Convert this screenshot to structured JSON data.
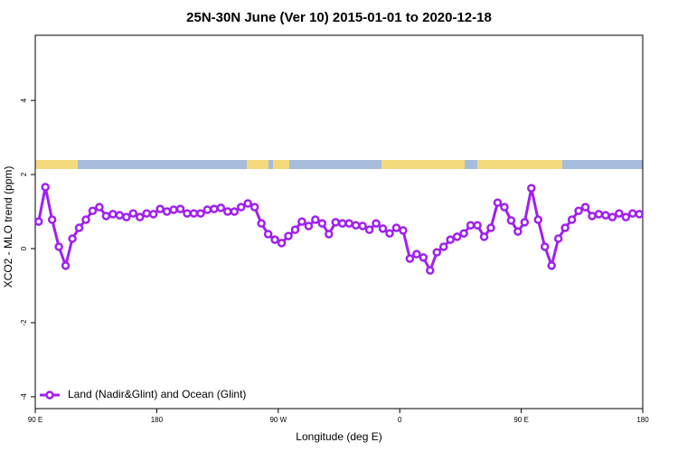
{
  "chart_data": {
    "type": "line",
    "title": "25N-30N June (Ver 10)   2015-01-01 to 2020-12-18",
    "x_label": "Longitude (deg E)",
    "y_label": "XCO2 - MLO trend (ppm)",
    "xlim": [
      90,
      540
    ],
    "ylim": [
      -4.32,
      5.76
    ],
    "xticks": [
      {
        "value": 90,
        "label": "90 E"
      },
      {
        "value": 180,
        "label": "180"
      },
      {
        "value": 270,
        "label": "90 W"
      },
      {
        "value": 360,
        "label": "0"
      },
      {
        "value": 450,
        "label": "90 E"
      },
      {
        "value": 540,
        "label": "180"
      }
    ],
    "yticks": [
      4,
      2,
      0,
      -2,
      -4
    ],
    "legend_position": "bottom-left",
    "x": [
      92.5,
      97.5,
      102.5,
      107.5,
      112.5,
      117.5,
      122.5,
      127.5,
      132.5,
      137.5,
      142.5,
      147.5,
      152.5,
      157.5,
      162.5,
      167.5,
      172.5,
      177.5,
      182.5,
      187.5,
      192.5,
      197.5,
      202.5,
      207.5,
      212.5,
      217.5,
      222.5,
      227.5,
      232.5,
      237.5,
      242.5,
      247.5,
      252.5,
      257.5,
      262.5,
      267.5,
      272.5,
      277.5,
      282.5,
      287.5,
      292.5,
      297.5,
      302.5,
      307.5,
      312.5,
      317.5,
      322.5,
      327.5,
      332.5,
      337.5,
      342.5,
      347.5,
      352.5,
      357.5,
      362.5,
      367.5,
      372.5,
      377.5,
      382.5,
      387.5,
      392.5,
      397.5,
      402.5,
      407.5,
      412.5,
      417.5,
      422.5,
      427.5,
      432.5,
      437.5,
      442.5,
      447.5,
      452.5,
      457.5,
      462.5,
      467.5,
      472.5,
      477.5,
      482.5,
      487.5,
      492.5,
      497.5,
      502.5,
      507.5,
      512.5,
      517.5,
      522.5,
      527.5,
      532.5,
      537.5
    ],
    "series": [
      {
        "name": "Land (Nadir&Glint) and Ocean (Glint)",
        "color": "#a020f0",
        "values": [
          0.73,
          1.66,
          0.78,
          0.05,
          -0.46,
          0.27,
          0.56,
          0.78,
          1.02,
          1.12,
          0.88,
          0.93,
          0.9,
          0.85,
          0.95,
          0.85,
          0.95,
          0.93,
          1.07,
          1.0,
          1.05,
          1.07,
          0.95,
          0.95,
          0.95,
          1.05,
          1.07,
          1.1,
          1.0,
          1.0,
          1.12,
          1.22,
          1.12,
          0.68,
          0.39,
          0.24,
          0.15,
          0.34,
          0.51,
          0.73,
          0.61,
          0.78,
          0.68,
          0.39,
          0.71,
          0.68,
          0.68,
          0.63,
          0.61,
          0.51,
          0.68,
          0.54,
          0.41,
          0.56,
          0.49,
          -0.27,
          -0.15,
          -0.24,
          -0.59,
          -0.1,
          0.05,
          0.24,
          0.32,
          0.41,
          0.63,
          0.63,
          0.32,
          0.56,
          1.24,
          1.12,
          0.76,
          0.46,
          0.71,
          1.63,
          0.78,
          0.05,
          -0.46,
          0.27,
          0.56,
          0.78,
          1.02,
          1.12,
          0.88,
          0.93,
          0.9,
          0.85,
          0.95,
          0.85,
          0.95,
          0.93
        ]
      }
    ]
  }
}
